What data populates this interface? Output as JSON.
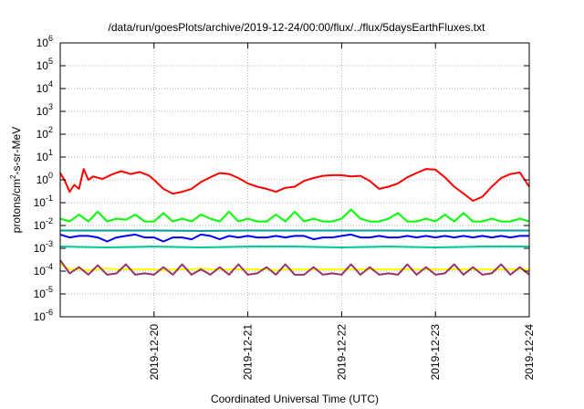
{
  "chart_data": {
    "type": "line",
    "title": "/data/run/goesPlots/archive/2019-12-24/00:00/flux/../flux/5daysEarthFluxes.txt",
    "xlabel": "Coordinated Universal Time (UTC)",
    "ylabel": "protons/cm²-s-sr-MeV",
    "ylabel_parts": {
      "pre": "protons/cm",
      "sup": "2",
      "post": "-s-sr-MeV"
    },
    "y_scale": "log",
    "ylim": [
      1e-06,
      1000000.0
    ],
    "y_ticks": [
      {
        "base": "10",
        "exp": "-6",
        "value": 1e-06
      },
      {
        "base": "10",
        "exp": "-5",
        "value": 1e-05
      },
      {
        "base": "10",
        "exp": "-4",
        "value": 0.0001
      },
      {
        "base": "10",
        "exp": "-3",
        "value": 0.001
      },
      {
        "base": "10",
        "exp": "-2",
        "value": 0.01
      },
      {
        "base": "10",
        "exp": "-1",
        "value": 0.1
      },
      {
        "base": "10",
        "exp": "0",
        "value": 1
      },
      {
        "base": "10",
        "exp": "1",
        "value": 10
      },
      {
        "base": "10",
        "exp": "2",
        "value": 100
      },
      {
        "base": "10",
        "exp": "3",
        "value": 1000
      },
      {
        "base": "10",
        "exp": "4",
        "value": 10000
      },
      {
        "base": "10",
        "exp": "5",
        "value": 100000
      },
      {
        "base": "10",
        "exp": "6",
        "value": 1000000
      }
    ],
    "xlim": [
      "2019-12-19T00:00",
      "2019-12-24T00:00"
    ],
    "x_ticks": [
      "2019-12-20",
      "2019-12-21",
      "2019-12-22",
      "2019-12-23",
      "2019-12-24"
    ],
    "grid": true,
    "series": [
      {
        "color": "#ff0000",
        "t": [
          0,
          0.05,
          0.1,
          0.15,
          0.2,
          0.25,
          0.3,
          0.35,
          0.45,
          0.55,
          0.65,
          0.75,
          0.85,
          0.95,
          1.0,
          1.1,
          1.2,
          1.3,
          1.4,
          1.5,
          1.6,
          1.7,
          1.8,
          1.9,
          2.0,
          2.1,
          2.2,
          2.3,
          2.4,
          2.5,
          2.6,
          2.7,
          2.8,
          2.9,
          3.0,
          3.1,
          3.2,
          3.3,
          3.4,
          3.5,
          3.6,
          3.7,
          3.8,
          3.9,
          4.0,
          4.1,
          4.2,
          4.3,
          4.4,
          4.5,
          4.6,
          4.7,
          4.8,
          4.9,
          5.0
        ],
        "y": [
          2.0,
          0.9,
          0.3,
          0.6,
          0.4,
          3.0,
          1.0,
          1.4,
          1.1,
          1.7,
          2.4,
          1.8,
          2.2,
          1.5,
          1.0,
          0.4,
          0.25,
          0.3,
          0.4,
          0.8,
          1.3,
          2.0,
          1.8,
          1.2,
          0.7,
          0.5,
          0.4,
          0.3,
          0.45,
          0.5,
          0.9,
          1.2,
          1.5,
          1.6,
          1.6,
          1.4,
          1.5,
          0.9,
          0.4,
          0.5,
          0.7,
          1.3,
          2.0,
          3.0,
          2.8,
          1.3,
          0.5,
          0.25,
          0.12,
          0.18,
          0.5,
          1.2,
          1.8,
          2.1,
          0.5
        ]
      },
      {
        "color": "#00ff00",
        "t": [
          0,
          0.1,
          0.2,
          0.3,
          0.4,
          0.5,
          0.6,
          0.7,
          0.8,
          0.9,
          1.0,
          1.1,
          1.2,
          1.3,
          1.4,
          1.5,
          1.6,
          1.7,
          1.8,
          1.9,
          2.0,
          2.1,
          2.2,
          2.3,
          2.4,
          2.5,
          2.6,
          2.7,
          2.8,
          2.9,
          3.0,
          3.1,
          3.2,
          3.3,
          3.4,
          3.5,
          3.6,
          3.7,
          3.8,
          3.9,
          4.0,
          4.1,
          4.2,
          4.3,
          4.4,
          4.5,
          4.6,
          4.7,
          4.8,
          4.9,
          5.0
        ],
        "y": [
          0.02,
          0.015,
          0.03,
          0.015,
          0.04,
          0.015,
          0.02,
          0.018,
          0.03,
          0.015,
          0.015,
          0.035,
          0.015,
          0.02,
          0.015,
          0.03,
          0.02,
          0.015,
          0.04,
          0.015,
          0.02,
          0.015,
          0.015,
          0.03,
          0.015,
          0.04,
          0.015,
          0.02,
          0.015,
          0.015,
          0.02,
          0.05,
          0.02,
          0.015,
          0.015,
          0.02,
          0.035,
          0.015,
          0.015,
          0.02,
          0.015,
          0.03,
          0.015,
          0.035,
          0.015,
          0.015,
          0.02,
          0.015,
          0.015,
          0.02,
          0.015
        ]
      },
      {
        "color": "#0000ff",
        "t": [
          0,
          0.1,
          0.2,
          0.3,
          0.4,
          0.5,
          0.6,
          0.7,
          0.8,
          0.9,
          1.0,
          1.1,
          1.2,
          1.3,
          1.4,
          1.5,
          1.6,
          1.7,
          1.8,
          1.9,
          2.0,
          2.1,
          2.2,
          2.3,
          2.4,
          2.5,
          2.6,
          2.7,
          2.8,
          2.9,
          3.0,
          3.1,
          3.2,
          3.3,
          3.4,
          3.5,
          3.6,
          3.7,
          3.8,
          3.9,
          4.0,
          4.1,
          4.2,
          4.3,
          4.4,
          4.5,
          4.6,
          4.7,
          4.8,
          4.9,
          5.0
        ],
        "y": [
          0.004,
          0.003,
          0.0035,
          0.0035,
          0.003,
          0.002,
          0.003,
          0.0035,
          0.004,
          0.003,
          0.003,
          0.002,
          0.003,
          0.003,
          0.0025,
          0.004,
          0.0035,
          0.0025,
          0.0035,
          0.003,
          0.0035,
          0.003,
          0.003,
          0.0035,
          0.003,
          0.0035,
          0.0035,
          0.0025,
          0.003,
          0.003,
          0.0035,
          0.004,
          0.003,
          0.003,
          0.0035,
          0.003,
          0.003,
          0.0035,
          0.003,
          0.0035,
          0.003,
          0.0035,
          0.003,
          0.0035,
          0.003,
          0.0035,
          0.003,
          0.0035,
          0.003,
          0.0035,
          0.0035
        ]
      },
      {
        "color": "#009999",
        "t": [
          0,
          0.5,
          1.0,
          1.5,
          2.0,
          2.5,
          3.0,
          3.5,
          4.0,
          4.5,
          5.0
        ],
        "y": [
          0.006,
          0.006,
          0.006,
          0.0058,
          0.006,
          0.006,
          0.006,
          0.006,
          0.0058,
          0.006,
          0.006
        ]
      },
      {
        "color": "#00cc99",
        "t": [
          0,
          0.5,
          1.0,
          1.5,
          2.0,
          2.5,
          3.0,
          3.5,
          4.0,
          4.5,
          5.0
        ],
        "y": [
          0.0012,
          0.0011,
          0.0012,
          0.0011,
          0.0012,
          0.0012,
          0.0011,
          0.0012,
          0.0011,
          0.0012,
          0.0012
        ]
      },
      {
        "color": "#ffff00",
        "t": [
          0,
          0.1,
          0.2,
          0.3,
          0.4,
          0.5,
          0.6,
          0.7,
          0.8,
          0.9,
          1.0,
          1.1,
          1.2,
          1.3,
          1.4,
          1.5,
          1.6,
          1.7,
          1.8,
          1.9,
          2.0,
          2.1,
          2.2,
          2.3,
          2.4,
          2.5,
          2.6,
          2.7,
          2.8,
          2.9,
          3.0,
          3.1,
          3.2,
          3.3,
          3.4,
          3.5,
          3.6,
          3.7,
          3.8,
          3.9,
          4.0,
          4.1,
          4.2,
          4.3,
          4.4,
          4.5,
          4.6,
          4.7,
          4.8,
          4.9,
          5.0
        ],
        "y": [
          0.0002,
          0.00012,
          0.00012,
          0.00011,
          0.00012,
          0.00013,
          0.00012,
          0.00012,
          0.00012,
          0.00012,
          0.00012,
          0.00011,
          0.00012,
          0.00012,
          0.00012,
          0.00013,
          0.00012,
          0.00012,
          0.00012,
          0.00012,
          0.00012,
          0.00012,
          0.00012,
          0.00011,
          0.00012,
          0.00012,
          0.00012,
          0.00012,
          0.00012,
          0.00012,
          0.00012,
          0.00012,
          0.00012,
          0.00012,
          0.00012,
          0.00012,
          0.00012,
          0.00012,
          0.00012,
          0.00012,
          0.00012,
          0.00012,
          0.00012,
          0.00012,
          0.00012,
          0.00012,
          0.00012,
          0.00012,
          0.00012,
          0.00012,
          0.00012
        ]
      },
      {
        "color": "#993366",
        "t": [
          0,
          0.1,
          0.2,
          0.3,
          0.4,
          0.5,
          0.6,
          0.7,
          0.8,
          0.9,
          1.0,
          1.1,
          1.2,
          1.3,
          1.4,
          1.5,
          1.6,
          1.7,
          1.8,
          1.9,
          2.0,
          2.1,
          2.2,
          2.3,
          2.4,
          2.5,
          2.6,
          2.7,
          2.8,
          2.9,
          3.0,
          3.1,
          3.2,
          3.3,
          3.4,
          3.5,
          3.6,
          3.7,
          3.8,
          3.9,
          4.0,
          4.1,
          4.2,
          4.3,
          4.4,
          4.5,
          4.6,
          4.7,
          4.8,
          4.9,
          5.0
        ],
        "y": [
          0.0003,
          8e-05,
          0.00015,
          7e-05,
          0.00018,
          7e-05,
          8e-05,
          0.0002,
          7e-05,
          8e-05,
          7e-05,
          0.00015,
          7e-05,
          0.0002,
          7e-05,
          0.00012,
          7e-05,
          0.00015,
          7e-05,
          0.0002,
          7e-05,
          8e-05,
          0.00015,
          7e-05,
          0.0002,
          7e-05,
          7e-05,
          0.00015,
          7e-05,
          8e-05,
          7e-05,
          0.0002,
          7e-05,
          0.00015,
          7e-05,
          8e-05,
          7e-05,
          0.0002,
          7e-05,
          0.00015,
          7e-05,
          8e-05,
          0.0002,
          7e-05,
          0.00015,
          7e-05,
          8e-05,
          0.0002,
          7e-05,
          0.00015,
          7e-05
        ]
      }
    ]
  }
}
